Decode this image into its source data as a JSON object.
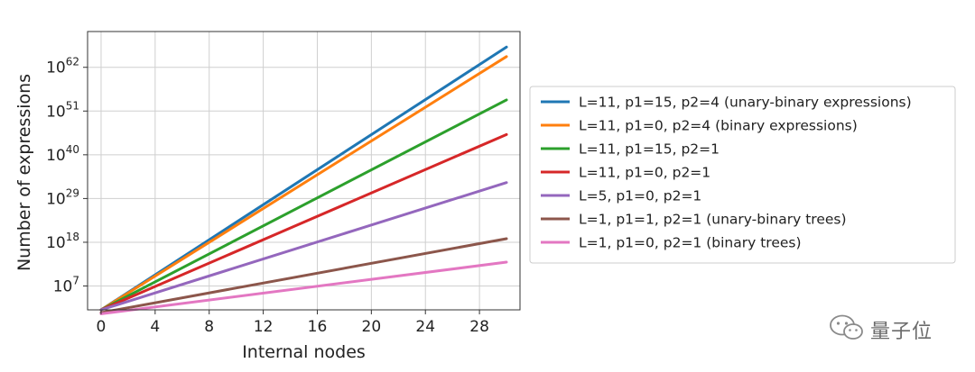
{
  "chart_data": {
    "type": "line",
    "title": "",
    "xlabel": "Internal nodes",
    "ylabel": "Number of expressions",
    "y_scale": "log10",
    "xlim": [
      -1,
      31
    ],
    "ylim_log10": [
      1,
      71
    ],
    "x_ticks": [
      0,
      4,
      8,
      12,
      16,
      20,
      24,
      28
    ],
    "y_ticks": [
      {
        "base": "10",
        "exp": "7",
        "value_log10": 7
      },
      {
        "base": "10",
        "exp": "18",
        "value_log10": 18
      },
      {
        "base": "10",
        "exp": "29",
        "value_log10": 29
      },
      {
        "base": "10",
        "exp": "40",
        "value_log10": 40
      },
      {
        "base": "10",
        "exp": "51",
        "value_log10": 51
      },
      {
        "base": "10",
        "exp": "62",
        "value_log10": 62
      }
    ],
    "grid": true,
    "legend_position": "right",
    "series": [
      {
        "name": "L=11, p1=15, p2=4 (unary-binary expressions)",
        "color": "#1f77b4",
        "x": [
          0,
          30
        ],
        "log10_y": [
          1.0,
          67.1
        ]
      },
      {
        "name": "L=11, p1=0,   p2=4 (binary expressions)",
        "color": "#ff7f0e",
        "x": [
          0,
          30
        ],
        "log10_y": [
          1.0,
          64.7
        ]
      },
      {
        "name": "L=11, p1=15, p2=1",
        "color": "#2ca02c",
        "x": [
          0,
          30
        ],
        "log10_y": [
          1.0,
          53.8
        ]
      },
      {
        "name": "L=11, p1=0,   p2=1",
        "color": "#d62728",
        "x": [
          0,
          30
        ],
        "log10_y": [
          1.0,
          45.1
        ]
      },
      {
        "name": "L=5,   p1=0,   p2=1",
        "color": "#9467bd",
        "x": [
          0,
          30
        ],
        "log10_y": [
          1.0,
          33.0
        ]
      },
      {
        "name": "L=1,   p1=1,   p2=1 (unary-binary trees)",
        "color": "#8c564b",
        "x": [
          0,
          30
        ],
        "log10_y": [
          0.3,
          18.9
        ]
      },
      {
        "name": "L=1,   p1=0,   p2=1 (binary trees)",
        "color": "#e377c2",
        "x": [
          0,
          30
        ],
        "log10_y": [
          0.0,
          13.0
        ]
      }
    ]
  },
  "watermark": {
    "text": "量子位",
    "icon": "wechat-icon"
  }
}
